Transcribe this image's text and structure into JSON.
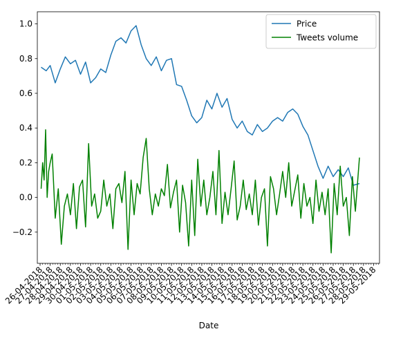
{
  "chart_data": {
    "type": "line",
    "xlabel": "Date",
    "ylabel": "",
    "ylim": [
      -0.38,
      1.07
    ],
    "yticks": [
      -0.2,
      0.0,
      0.2,
      0.4,
      0.6,
      0.8,
      1.0
    ],
    "ytick_labels": [
      "−0.2",
      "0.0",
      "0.2",
      "0.4",
      "0.6",
      "0.8",
      "1.0"
    ],
    "xticks": [
      "26-04-2018",
      "27-04-2018",
      "28-04-2018",
      "29-04-2018",
      "30-04-2018",
      "01-05-2018",
      "02-05-2018",
      "03-05-2018",
      "04-05-2018",
      "05-05-2018",
      "06-05-2018",
      "07-05-2018",
      "08-05-2018",
      "09-05-2018",
      "10-05-2018",
      "11-05-2018",
      "12-05-2018",
      "13-05-2018",
      "14-05-2018",
      "15-05-2018",
      "16-05-2018",
      "17-05-2018",
      "18-05-2018",
      "19-05-2018",
      "20-05-2018",
      "21-05-2018",
      "22-05-2018",
      "23-05-2018",
      "24-05-2018",
      "25-05-2018",
      "26-05-2018",
      "27-05-2018",
      "28-05-2018",
      "29-05-2018"
    ],
    "x_major_ticks": 34,
    "x_minor_per_major": 4,
    "x_data_range": [
      0.1,
      31.6
    ],
    "legend": {
      "position": "top-right",
      "entries": [
        "Price",
        "Tweets volume"
      ]
    },
    "grid": false,
    "colors": {
      "price": "#1f77b4",
      "tweets": "#008000"
    },
    "series": [
      {
        "name": "Price",
        "color": "#1f77b4",
        "x": [
          0.1,
          0.6,
          1.0,
          1.5,
          2.0,
          2.5,
          3.0,
          3.5,
          4.0,
          4.5,
          5.0,
          5.5,
          6.0,
          6.5,
          7.0,
          7.5,
          8.0,
          8.5,
          9.0,
          9.5,
          10.0,
          10.5,
          11.0,
          11.5,
          12.0,
          12.5,
          13.0,
          13.5,
          14.0,
          14.5,
          15.0,
          15.5,
          16.0,
          16.5,
          17.0,
          17.5,
          18.0,
          18.5,
          19.0,
          19.5,
          20.0,
          20.5,
          21.0,
          21.5,
          22.0,
          22.5,
          23.0,
          23.5,
          24.0,
          24.5,
          25.0,
          25.5,
          26.0,
          26.5,
          27.0,
          27.5,
          28.0,
          28.5,
          29.0,
          29.5,
          30.0,
          30.5,
          31.0,
          31.6
        ],
        "y": [
          0.75,
          0.73,
          0.76,
          0.66,
          0.74,
          0.81,
          0.77,
          0.79,
          0.71,
          0.78,
          0.66,
          0.69,
          0.74,
          0.72,
          0.82,
          0.9,
          0.92,
          0.89,
          0.96,
          0.99,
          0.88,
          0.8,
          0.76,
          0.81,
          0.73,
          0.79,
          0.8,
          0.65,
          0.64,
          0.56,
          0.47,
          0.43,
          0.46,
          0.56,
          0.51,
          0.6,
          0.52,
          0.57,
          0.45,
          0.4,
          0.44,
          0.38,
          0.36,
          0.42,
          0.38,
          0.4,
          0.44,
          0.46,
          0.44,
          0.49,
          0.51,
          0.48,
          0.41,
          0.36,
          0.27,
          0.18,
          0.11,
          0.18,
          0.12,
          0.16,
          0.12,
          0.17,
          0.07,
          0.08
        ]
      },
      {
        "name": "Tweets volume",
        "color": "#008000",
        "x": [
          0.1,
          0.25,
          0.4,
          0.55,
          0.7,
          0.85,
          1.0,
          1.2,
          1.5,
          1.8,
          2.1,
          2.4,
          2.7,
          3.0,
          3.3,
          3.6,
          3.9,
          4.2,
          4.5,
          4.8,
          5.1,
          5.4,
          5.7,
          6.0,
          6.3,
          6.6,
          6.9,
          7.2,
          7.5,
          7.8,
          8.1,
          8.4,
          8.7,
          9.0,
          9.3,
          9.6,
          9.9,
          10.2,
          10.5,
          10.8,
          11.1,
          11.4,
          11.7,
          12.0,
          12.3,
          12.6,
          12.9,
          13.2,
          13.5,
          13.8,
          14.1,
          14.4,
          14.7,
          15.0,
          15.3,
          15.6,
          15.9,
          16.2,
          16.5,
          16.8,
          17.1,
          17.4,
          17.7,
          18.0,
          18.3,
          18.6,
          18.9,
          19.2,
          19.5,
          19.8,
          20.1,
          20.4,
          20.7,
          21.0,
          21.3,
          21.6,
          21.9,
          22.2,
          22.5,
          22.8,
          23.1,
          23.4,
          23.7,
          24.0,
          24.3,
          24.6,
          24.9,
          25.2,
          25.5,
          25.8,
          26.1,
          26.4,
          26.7,
          27.0,
          27.3,
          27.6,
          27.9,
          28.2,
          28.5,
          28.8,
          29.1,
          29.4,
          29.7,
          30.0,
          30.3,
          30.6,
          30.9,
          31.2,
          31.6
        ],
        "y": [
          0.05,
          0.2,
          0.1,
          0.39,
          0.0,
          0.15,
          0.2,
          0.25,
          -0.12,
          0.05,
          -0.27,
          -0.05,
          0.02,
          -0.1,
          0.08,
          -0.18,
          0.06,
          0.1,
          -0.17,
          0.31,
          -0.05,
          0.02,
          -0.12,
          -0.08,
          0.1,
          -0.05,
          0.02,
          -0.18,
          0.05,
          0.08,
          -0.03,
          0.15,
          -0.3,
          0.1,
          -0.1,
          0.08,
          0.02,
          0.23,
          0.34,
          0.05,
          -0.1,
          0.02,
          -0.05,
          0.05,
          0.01,
          0.19,
          -0.06,
          0.03,
          0.1,
          -0.2,
          0.07,
          -0.03,
          -0.28,
          0.1,
          -0.22,
          0.22,
          -0.05,
          0.1,
          -0.1,
          0.0,
          0.15,
          -0.1,
          0.27,
          -0.15,
          0.03,
          -0.1,
          0.05,
          0.21,
          -0.13,
          -0.05,
          0.1,
          -0.07,
          0.02,
          -0.1,
          0.1,
          -0.16,
          0.0,
          0.05,
          -0.28,
          0.12,
          0.05,
          -0.1,
          0.02,
          0.15,
          0.0,
          0.2,
          -0.05,
          0.04,
          0.13,
          -0.12,
          0.08,
          -0.05,
          0.0,
          -0.15,
          0.1,
          -0.08,
          0.03,
          -0.1,
          0.05,
          -0.32,
          0.08,
          -0.1,
          0.18,
          -0.05,
          0.0,
          -0.22,
          0.12,
          -0.08,
          0.23
        ]
      }
    ]
  }
}
